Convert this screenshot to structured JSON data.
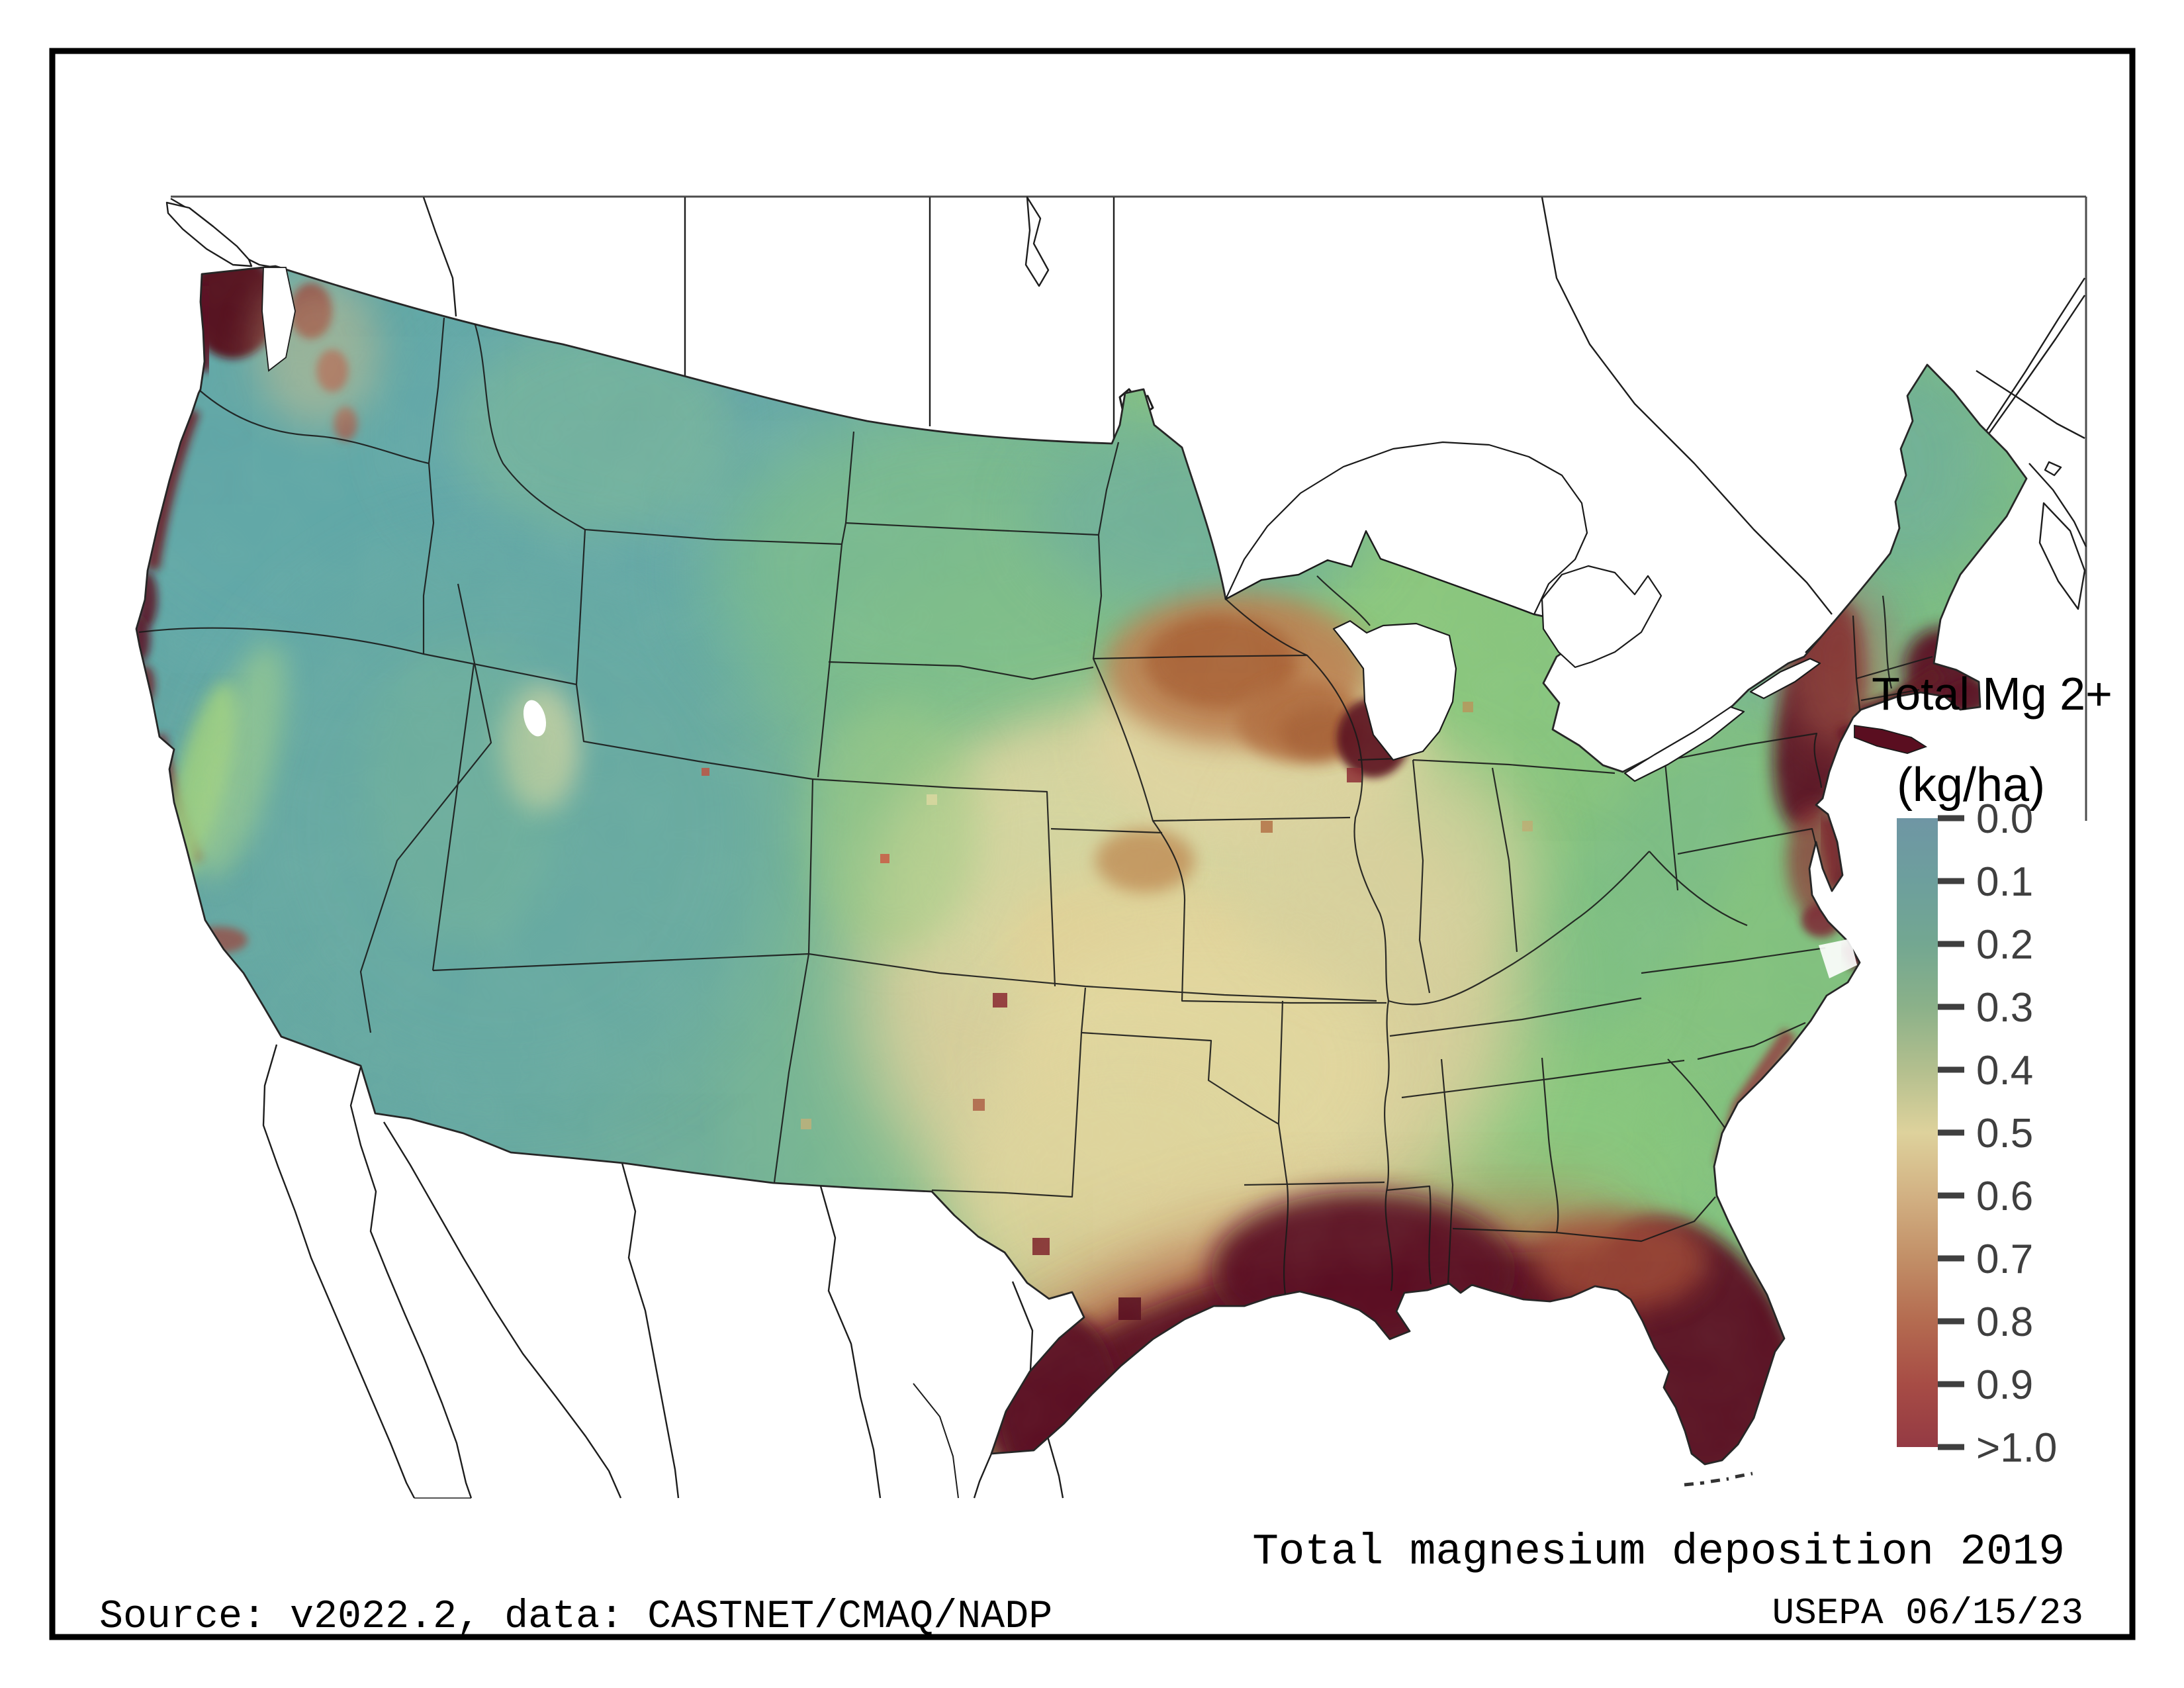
{
  "figure": {
    "kind": "raster deposition map of the contiguous United States",
    "background_color": "#ffffff",
    "frame_color": "#000000"
  },
  "legend": {
    "title": "Total Mg 2+",
    "units": "(kg/ha)",
    "tick_labels": [
      "0.0",
      "0.1",
      "0.2",
      "0.3",
      "0.4",
      "0.5",
      "0.6",
      "0.7",
      "0.8",
      "0.9",
      ">1.0"
    ],
    "tick_color": "#3f3f3f",
    "colorbar_stops": [
      {
        "value": "0.0",
        "color": "#6f96a4"
      },
      {
        "value": "0.1",
        "color": "#6d9f9d"
      },
      {
        "value": "0.2",
        "color": "#73a791"
      },
      {
        "value": "0.3",
        "color": "#8bb189"
      },
      {
        "value": "0.4",
        "color": "#b3bf8e"
      },
      {
        "value": "0.5",
        "color": "#ded29c"
      },
      {
        "value": "0.6",
        "color": "#d2b183"
      },
      {
        "value": "0.7",
        "color": "#c28f67"
      },
      {
        "value": "0.8",
        "color": "#b46b50"
      },
      {
        "value": "0.9",
        "color": "#a74c45"
      },
      {
        "value": ">1.0",
        "color": "#943a44"
      }
    ]
  },
  "captions": {
    "map_title": "Total magnesium deposition 2019",
    "source_left": "Source: v2022.2, data: CASTNET/CMAQ/NADP",
    "agency_right": "USEPA 06/15/23"
  },
  "chart_data": {
    "type": "heatmap",
    "title": "Total magnesium deposition 2019",
    "variable": "Total Mg 2+",
    "units": "kg/ha",
    "scale_ticks": [
      0.0,
      0.1,
      0.2,
      0.3,
      0.4,
      0.5,
      0.6,
      0.7,
      0.8,
      0.9,
      1.0
    ],
    "scale_note": "top of colorbar = 0.0 (blue-gray), bottom = >1.0 (dark red)",
    "qualitative_pattern": {
      "lowest_0.0_to_0.2": "Interior western US (WA/OR/ID/MT/NV/UT interior) shown teal blue-green",
      "low_0.2_to_0.4": "Upper Midwest, Ohio Valley, Southeast interior, Northeast shown green",
      "mid_0.4_to_0.6": "Central plains (IA/NE/KS/OK/MO/TX) shown pale tan",
      "high_0.6_to_0.9": "Southern Minnesota / Iowa brown patches; inland Gulf fringe",
      "highest_gt_1.0": "Gulf Coast band (south TX to AL), Florida peninsula, Atlantic fringe (NJ, Long Island, Boston/Cape Cod, coastal NC/SC/GA), Pacific Northwest coast (Olympic Peninsula), Oregon/California coastal strips, Chicago/Lake Michigan shore"
    }
  },
  "map_palette": {
    "extreme_high": "#5a0e20",
    "coastal_fringe_red": "#a9543d",
    "plains_tan": "#ddd1a0",
    "brown_patch": "#b97f4f",
    "east_green": "#86c37e",
    "west_teal": "#63a6a4",
    "boundary_line": "#1a1a1a",
    "neighbor_land": "#ffffff"
  }
}
